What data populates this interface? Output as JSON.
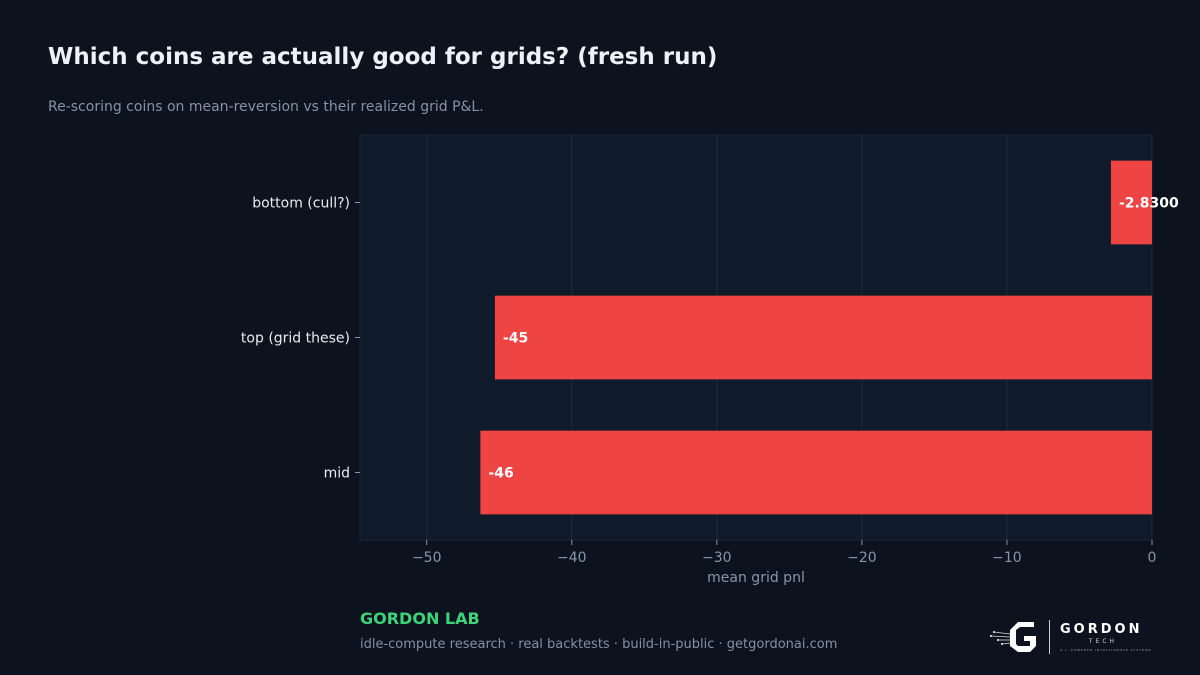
{
  "header": {
    "title": "Which coins are actually good for grids? (fresh run)",
    "subtitle": "Re-scoring coins on mean-reversion vs their realized grid P&L."
  },
  "chart_data": {
    "type": "bar",
    "orientation": "horizontal",
    "categories": [
      "bottom (cull?)",
      "top (grid these)",
      "mid"
    ],
    "values": [
      -2.83,
      -45.3,
      -46.3
    ],
    "data_labels": [
      "-2.8300",
      "-45",
      "-46"
    ],
    "xlabel": "mean grid pnl",
    "ylabel": "",
    "xlim": [
      -54.6,
      0
    ],
    "x_ticks": [
      -50,
      -40,
      -30,
      -20,
      -10,
      0
    ],
    "x_tick_labels": [
      "−50",
      "−40",
      "−30",
      "−20",
      "−10",
      "0"
    ],
    "grid": true,
    "legend": "none",
    "colors": {
      "bar": "#ef4444",
      "plot_background": "#0f1b2a",
      "grid": "#1e2b3b",
      "tick_label": "#8896a8",
      "category_label": "#e8ecf2",
      "data_label": "#ffffff"
    }
  },
  "footer": {
    "brand": "GORDON LAB",
    "tagline": "idle-compute research · real backtests · build-in-public · getgordonai.com"
  },
  "logo": {
    "icon": "gordon-g-circuit-icon",
    "wordmark": "GORDON",
    "sub": "TECH",
    "caption": "A.I.-POWERED INTELLIGENCE SYSTEMS"
  }
}
